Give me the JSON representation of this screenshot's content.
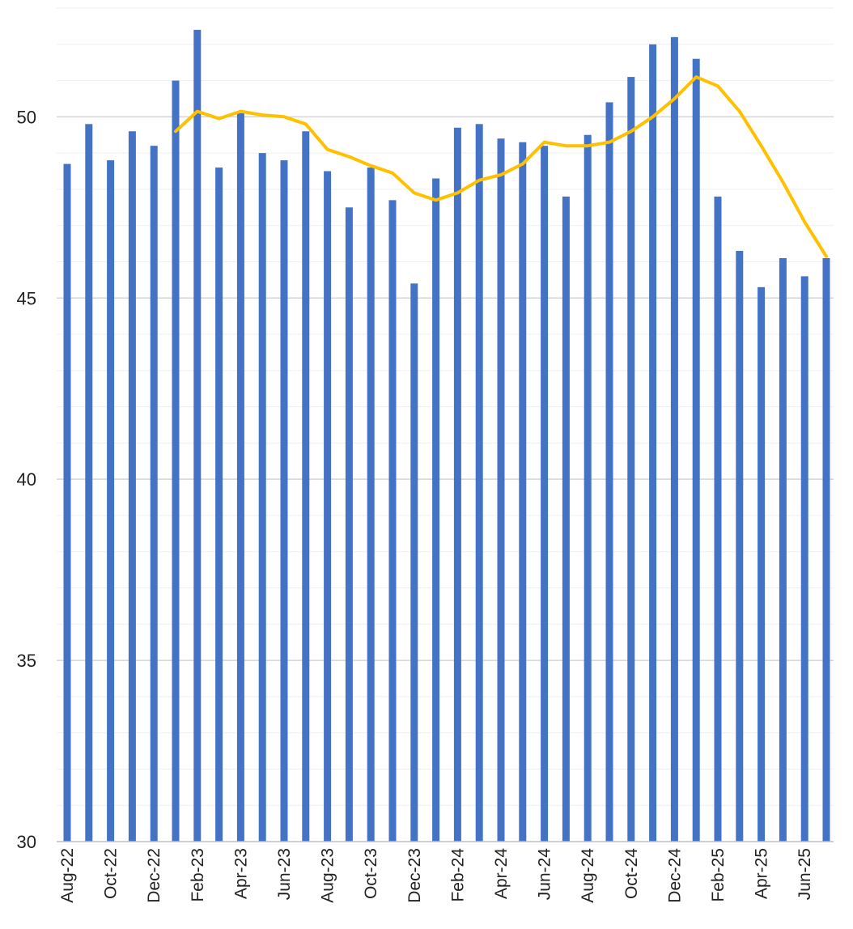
{
  "chart_data": {
    "type": "bar",
    "title": "",
    "xlabel": "",
    "ylabel": "",
    "ylim": [
      30,
      53
    ],
    "yticks": [
      30,
      35,
      40,
      45,
      50
    ],
    "grid": true,
    "categories": [
      "Aug-22",
      "Sep-22",
      "Oct-22",
      "Nov-22",
      "Dec-22",
      "Jan-23",
      "Feb-23",
      "Mar-23",
      "Apr-23",
      "May-23",
      "Jun-23",
      "Jul-23",
      "Aug-23",
      "Sep-23",
      "Oct-23",
      "Nov-23",
      "Dec-23",
      "Jan-24",
      "Feb-24",
      "Mar-24",
      "Apr-24",
      "May-24",
      "Jun-24",
      "Jul-24",
      "Aug-24",
      "Sep-24",
      "Oct-24",
      "Nov-24",
      "Dec-24",
      "Jan-25",
      "Feb-25",
      "Mar-25",
      "Apr-25",
      "May-25",
      "Jun-25",
      "Jul-25"
    ],
    "tick_labels_shown": [
      "Aug-22",
      "Oct-22",
      "Dec-22",
      "Feb-23",
      "Apr-23",
      "Jun-23",
      "Aug-23",
      "Oct-23",
      "Dec-23",
      "Feb-24",
      "Apr-24",
      "Jun-24",
      "Aug-24",
      "Oct-24",
      "Dec-24",
      "Feb-25",
      "Apr-25",
      "Jun-25"
    ],
    "series": [
      {
        "type": "bar",
        "color": "#4472C4",
        "values": [
          48.7,
          49.8,
          48.8,
          49.6,
          49.2,
          51.0,
          52.4,
          48.6,
          50.1,
          49.0,
          48.8,
          49.6,
          48.5,
          47.5,
          48.6,
          47.7,
          45.4,
          48.3,
          49.7,
          49.8,
          49.4,
          49.3,
          49.2,
          47.8,
          49.5,
          50.4,
          51.1,
          52.0,
          52.2,
          51.6,
          47.8,
          46.3,
          45.3,
          46.1,
          45.6,
          46.1
        ]
      },
      {
        "type": "line",
        "color": "#FFC000",
        "values": [
          null,
          null,
          null,
          null,
          null,
          49.6,
          50.15,
          49.95,
          50.15,
          50.05,
          50.0,
          49.8,
          49.1,
          48.9,
          48.65,
          48.45,
          47.9,
          47.7,
          47.9,
          48.25,
          48.4,
          48.7,
          49.3,
          49.2,
          49.2,
          49.3,
          49.6,
          50.0,
          50.5,
          51.1,
          50.85,
          50.15,
          49.2,
          48.2,
          47.1,
          46.15
        ]
      }
    ]
  }
}
